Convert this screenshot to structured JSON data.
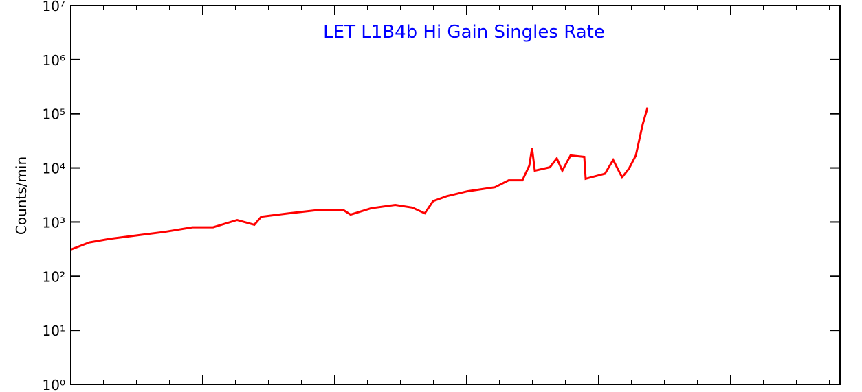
{
  "chart_data": {
    "type": "line",
    "title": "LET L1B4b Hi Gain Singles Rate",
    "ylabel": "Counts/min",
    "log_y": true,
    "ylim": [
      1,
      10000000
    ],
    "yticks": [
      {
        "value": 1,
        "label": "10⁰"
      },
      {
        "value": 10,
        "label": "10¹"
      },
      {
        "value": 100,
        "label": "10²"
      },
      {
        "value": 1000,
        "label": "10³"
      },
      {
        "value": 10000,
        "label": "10⁴"
      },
      {
        "value": 100000,
        "label": "10⁵"
      },
      {
        "value": 1000000,
        "label": "10⁶"
      },
      {
        "value": 10000000,
        "label": "10⁷"
      }
    ],
    "xlim": [
      0,
      1119
    ],
    "xticks": [
      0,
      192,
      384,
      576,
      768,
      960
    ],
    "x": [
      0,
      27,
      57,
      97,
      137,
      177,
      207,
      242,
      267,
      277,
      317,
      357,
      397,
      407,
      437,
      472,
      497,
      515,
      527,
      547,
      577,
      617,
      637,
      657,
      667,
      671,
      675,
      697,
      707,
      715,
      727,
      747,
      749,
      777,
      789,
      802,
      812,
      822,
      832,
      839
    ],
    "series": [
      {
        "name": null,
        "color": "#ff0000",
        "values": [
          310,
          420,
          490,
          570,
          660,
          800,
          800,
          1090,
          890,
          1250,
          1450,
          1650,
          1650,
          1370,
          1800,
          2070,
          1850,
          1450,
          2430,
          3000,
          3700,
          4400,
          5900,
          5900,
          11000,
          23000,
          8900,
          10300,
          15000,
          8900,
          17000,
          16000,
          6300,
          7800,
          14000,
          6700,
          9700,
          17000,
          64000,
          130000
        ]
      }
    ]
  }
}
